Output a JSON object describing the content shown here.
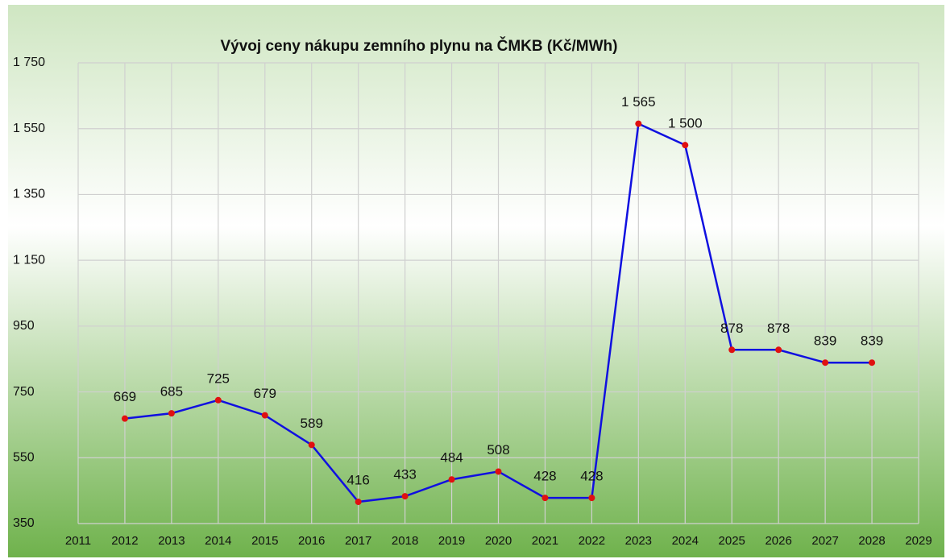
{
  "chart_data": {
    "type": "line",
    "title": "Vývoj ceny nákupu zemního plynu na ČMKB (Kč/MWh)",
    "x": [
      2012,
      2013,
      2014,
      2015,
      2016,
      2017,
      2018,
      2019,
      2020,
      2021,
      2022,
      2023,
      2024,
      2025,
      2026,
      2027,
      2028
    ],
    "series": [
      {
        "color": "#1010e0",
        "marker_color": "#e01010",
        "values": [
          669,
          685,
          725,
          679,
          589,
          416,
          433,
          484,
          508,
          428,
          428,
          1565,
          1500,
          878,
          878,
          839,
          839
        ],
        "value_labels": [
          "669",
          "685",
          "725",
          "679",
          "589",
          "416",
          "433",
          "484",
          "508",
          "428",
          "428",
          "1 565",
          "1 500",
          "878",
          "878",
          "839",
          "839"
        ]
      }
    ],
    "xlim": [
      2011,
      2029
    ],
    "xticks": [
      2011,
      2012,
      2013,
      2014,
      2015,
      2016,
      2017,
      2018,
      2019,
      2020,
      2021,
      2022,
      2023,
      2024,
      2025,
      2026,
      2027,
      2028,
      2029
    ],
    "ylim": [
      350,
      1750
    ],
    "yticks": [
      350,
      550,
      750,
      950,
      {
        "value": 1150,
        "label": "1 150"
      },
      {
        "value": 1350,
        "label": "1 350"
      },
      {
        "value": 1550,
        "label": "1 550"
      },
      {
        "value": 1750,
        "label": "1 750"
      }
    ],
    "grid": true
  }
}
